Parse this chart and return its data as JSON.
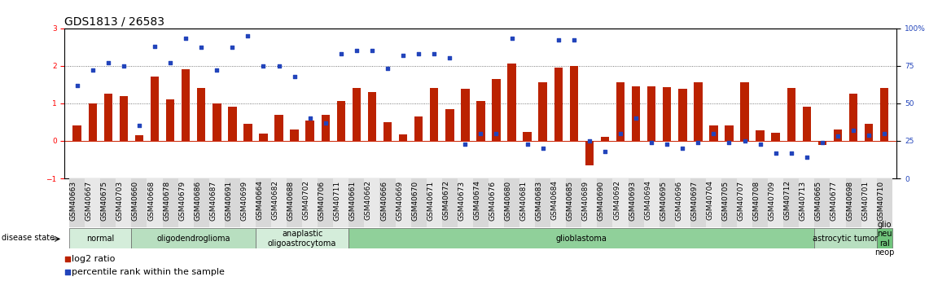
{
  "title": "GDS1813 / 26583",
  "samples": [
    "GSM40663",
    "GSM40667",
    "GSM40675",
    "GSM40703",
    "GSM40660",
    "GSM40668",
    "GSM40678",
    "GSM40679",
    "GSM40686",
    "GSM40687",
    "GSM40691",
    "GSM40699",
    "GSM40664",
    "GSM40682",
    "GSM40688",
    "GSM40702",
    "GSM40706",
    "GSM40711",
    "GSM40661",
    "GSM40662",
    "GSM40666",
    "GSM40669",
    "GSM40670",
    "GSM40671",
    "GSM40672",
    "GSM40673",
    "GSM40674",
    "GSM40676",
    "GSM40680",
    "GSM40681",
    "GSM40683",
    "GSM40684",
    "GSM40685",
    "GSM40689",
    "GSM40690",
    "GSM40692",
    "GSM40693",
    "GSM40694",
    "GSM40695",
    "GSM40696",
    "GSM40697",
    "GSM40704",
    "GSM40705",
    "GSM40707",
    "GSM40708",
    "GSM40709",
    "GSM40712",
    "GSM40713",
    "GSM40665",
    "GSM40677",
    "GSM40698",
    "GSM40701",
    "GSM40710"
  ],
  "log2_ratio": [
    0.42,
    1.0,
    1.25,
    1.2,
    0.15,
    1.7,
    1.1,
    1.9,
    1.4,
    1.0,
    0.9,
    0.45,
    0.2,
    0.7,
    0.3,
    0.55,
    0.7,
    1.05,
    1.4,
    1.3,
    0.5,
    0.18,
    0.65,
    1.4,
    0.85,
    1.38,
    1.05,
    1.65,
    2.05,
    0.23,
    1.55,
    1.95,
    2.0,
    -0.65,
    0.1,
    1.55,
    1.45,
    1.45,
    1.42,
    1.38,
    1.55,
    0.42,
    0.42,
    1.55,
    0.28,
    0.22,
    1.4,
    0.9,
    -0.1,
    0.3,
    1.25,
    0.45,
    1.4
  ],
  "percentile_rank": [
    62,
    72,
    77,
    75,
    35,
    88,
    77,
    93,
    87,
    72,
    87,
    95,
    75,
    75,
    68,
    40,
    37,
    83,
    85,
    85,
    73,
    82,
    83,
    83,
    80,
    23,
    30,
    30,
    93,
    23,
    20,
    92,
    92,
    25,
    18,
    30,
    40,
    24,
    23,
    20,
    24,
    30,
    24,
    25,
    23,
    17,
    17,
    14,
    24,
    28,
    32,
    29,
    30
  ],
  "disease_groups": [
    {
      "label": "normal",
      "start": 0,
      "end": 4,
      "color": "#d4edda"
    },
    {
      "label": "oligodendroglioma",
      "start": 4,
      "end": 12,
      "color": "#b8dfc0"
    },
    {
      "label": "anaplastic\noligoastrocytoma",
      "start": 12,
      "end": 18,
      "color": "#d4edda"
    },
    {
      "label": "glioblastoma",
      "start": 18,
      "end": 48,
      "color": "#90d09a"
    },
    {
      "label": "astrocytic tumor",
      "start": 48,
      "end": 52,
      "color": "#b8dfc0"
    },
    {
      "label": "glio\nneu\nral\nneop",
      "start": 52,
      "end": 53,
      "color": "#70c47c"
    }
  ],
  "ylim_left": [
    -1.0,
    3.0
  ],
  "ylim_right": [
    0,
    100
  ],
  "bar_color": "#bb2200",
  "scatter_color": "#2244bb",
  "hline0_color": "#cc2200",
  "dotline_color": "#555555",
  "yticks_left": [
    -1,
    0,
    1,
    2,
    3
  ],
  "yticks_right": [
    0,
    25,
    50,
    75,
    100
  ],
  "dotlines": [
    1.0,
    2.0
  ],
  "title_fontsize": 10,
  "tick_fontsize": 6.5,
  "legend_fontsize": 8
}
